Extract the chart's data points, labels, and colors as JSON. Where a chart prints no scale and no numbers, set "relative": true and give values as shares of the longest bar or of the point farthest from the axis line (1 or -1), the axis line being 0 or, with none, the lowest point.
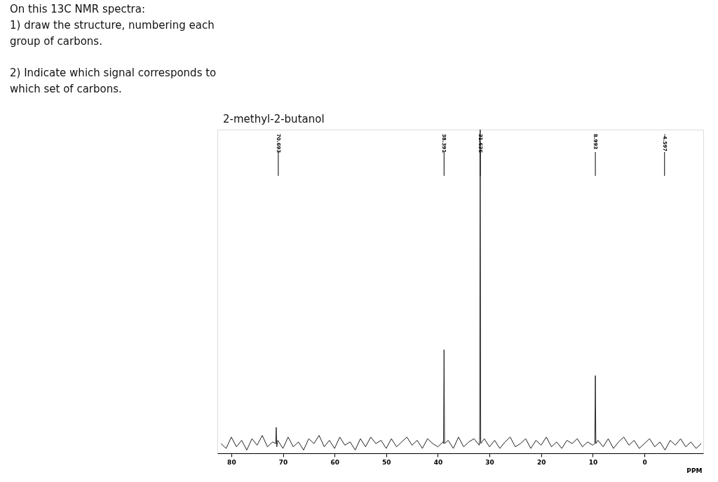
{
  "chart_data": {
    "type": "line",
    "title": "2-methyl-2-butanol",
    "xlabel": "PPM",
    "relative": true,
    "xlim": [
      82.7,
      -11.4
    ],
    "xticks": [
      80,
      70,
      60,
      50,
      40,
      30,
      20,
      10,
      0
    ],
    "grid": false,
    "color": "#222222",
    "annotations": [
      "On this 13C NMR spectra:",
      "1) draw the structure, numbering each",
      "group of carbons.",
      "2) Indicate which signal corresponds to",
      "which set of carbons.",
      {
        "text": "70.693",
        "x": 70.9
      },
      {
        "text": "38.391",
        "x": 38.8
      },
      {
        "text": "31.636",
        "x": 31.8
      },
      {
        "text": "8.993",
        "x": 9.5
      },
      {
        "text": "-4.597",
        "x": -3.9
      }
    ],
    "x": [
      82,
      81,
      80,
      79,
      78,
      77,
      76,
      75,
      74,
      73,
      72,
      71.4,
      71.3,
      71.2,
      71,
      70,
      69,
      68,
      67,
      66,
      65,
      64,
      63,
      62,
      61,
      60,
      59,
      58,
      57,
      56,
      55,
      54,
      53,
      52,
      51,
      50,
      49,
      48,
      47,
      46,
      45,
      44,
      43,
      42,
      41,
      40,
      39,
      38.9,
      38.8,
      38.7,
      38,
      37,
      36,
      35,
      34,
      33,
      32,
      31.9,
      31.8,
      31.7,
      31,
      30,
      29,
      28,
      27,
      26,
      25,
      24,
      23,
      22,
      21,
      20,
      19,
      18,
      17,
      16,
      15,
      14,
      13,
      12,
      11,
      10,
      9.6,
      9.5,
      9.4,
      9,
      8,
      7,
      6,
      5,
      4,
      3,
      2,
      1,
      0,
      -1,
      -2,
      -3,
      -4,
      -5,
      -6,
      -7,
      -8,
      -9,
      -10,
      -11
    ],
    "values": [
      0.03,
      0.015,
      0.05,
      0.02,
      0.04,
      0.01,
      0.045,
      0.025,
      0.055,
      0.02,
      0.035,
      0.03,
      0.08,
      0.02,
      0.04,
      0.015,
      0.05,
      0.02,
      0.035,
      0.01,
      0.045,
      0.03,
      0.055,
      0.02,
      0.04,
      0.015,
      0.05,
      0.025,
      0.035,
      0.01,
      0.045,
      0.02,
      0.05,
      0.03,
      0.04,
      0.015,
      0.045,
      0.02,
      0.035,
      0.05,
      0.025,
      0.04,
      0.015,
      0.045,
      0.03,
      0.02,
      0.035,
      0.03,
      0.32,
      0.03,
      0.04,
      0.015,
      0.05,
      0.02,
      0.035,
      0.045,
      0.025,
      0.04,
      1.0,
      0.03,
      0.045,
      0.02,
      0.04,
      0.015,
      0.035,
      0.05,
      0.02,
      0.03,
      0.045,
      0.015,
      0.04,
      0.025,
      0.05,
      0.02,
      0.035,
      0.015,
      0.04,
      0.03,
      0.045,
      0.02,
      0.035,
      0.025,
      0.03,
      0.24,
      0.03,
      0.04,
      0.02,
      0.045,
      0.015,
      0.035,
      0.05,
      0.025,
      0.04,
      0.015,
      0.03,
      0.045,
      0.02,
      0.035,
      0.01,
      0.04,
      0.025,
      0.045,
      0.02,
      0.035,
      0.015,
      0.03
    ]
  }
}
